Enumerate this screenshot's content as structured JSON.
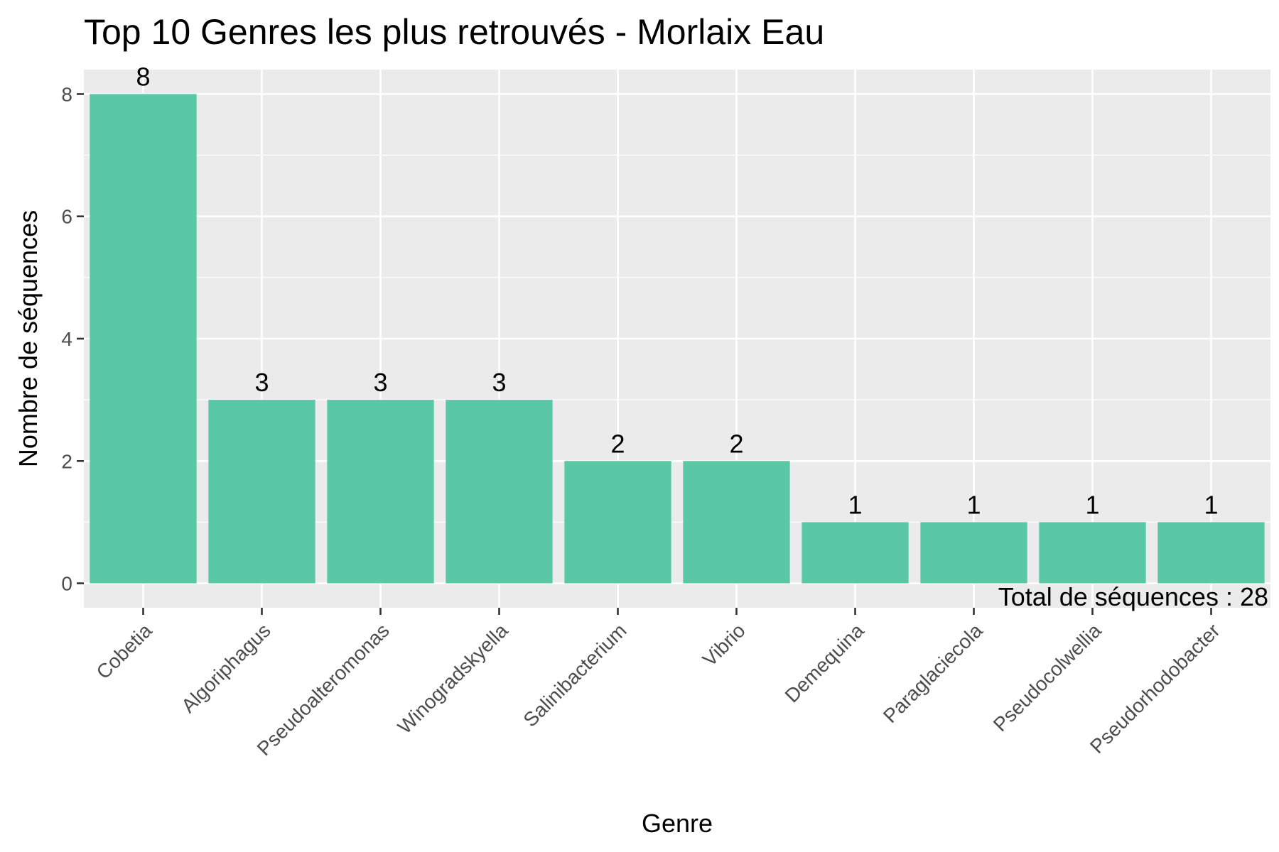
{
  "chart_data": {
    "type": "bar",
    "title": "Top 10 Genres les plus retrouvés - Morlaix Eau",
    "xlabel": "Genre",
    "ylabel": "Nombre de séquences",
    "categories": [
      "Cobetia",
      "Algoriphagus",
      "Pseudoalteromonas",
      "Winogradskyella",
      "Salinibacterium",
      "Vibrio",
      "Demequina",
      "Paraglaciecola",
      "Pseudocolwellia",
      "Pseudorhodobacter"
    ],
    "values": [
      8,
      3,
      3,
      3,
      2,
      2,
      1,
      1,
      1,
      1
    ],
    "data_labels": [
      "8",
      "3",
      "3",
      "3",
      "2",
      "2",
      "1",
      "1",
      "1",
      "1"
    ],
    "yticks": [
      0,
      2,
      4,
      6,
      8
    ],
    "ylim": [
      -0.4,
      8.4
    ],
    "grid": true,
    "legend": "none",
    "annotation": "Total de séquences : 28",
    "colors": {
      "bar": "#5ac8a4",
      "panel": "#ebebeb",
      "grid": "#ffffff",
      "tick": "#333333"
    }
  }
}
